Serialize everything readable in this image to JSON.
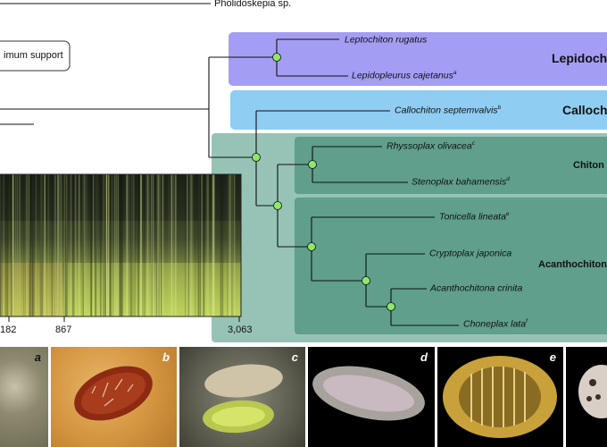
{
  "colors": {
    "lepidopleurida": "#a49df4",
    "callochitonida": "#8fcdf3",
    "chitonida_outer": "#96c3b6",
    "chitonida_inner": "#5f9f8b",
    "node": "#8ee86a"
  },
  "labels": {
    "outgroup": "Pholidoskepia sp.",
    "legend": "imum support",
    "clade_lepido": "Lepidoch",
    "clade_calloch": "Calloch",
    "clade_chiton": "Chiton",
    "clade_acantho": "Acanthochiton"
  },
  "taxa": [
    {
      "name": "Leptochiton rugatus",
      "sup": ""
    },
    {
      "name": "Lepidopleurus cajetanus",
      "sup": "a"
    },
    {
      "name": "Callochiton septemvalvis",
      "sup": "b"
    },
    {
      "name": "Rhyssoplax olivacea",
      "sup": "c"
    },
    {
      "name": "Stenoplax bahamensis",
      "sup": "d"
    },
    {
      "name": "Tonicella lineata",
      "sup": "e"
    },
    {
      "name": "Cryptoplax japonica",
      "sup": ""
    },
    {
      "name": "Acanthochitona crinita",
      "sup": ""
    },
    {
      "name": "Choneplax lata",
      "sup": "f"
    }
  ],
  "axis_ticks": [
    "182",
    "867",
    "3,063"
  ],
  "photo_labels": [
    "a",
    "b",
    "c",
    "d",
    "e"
  ]
}
